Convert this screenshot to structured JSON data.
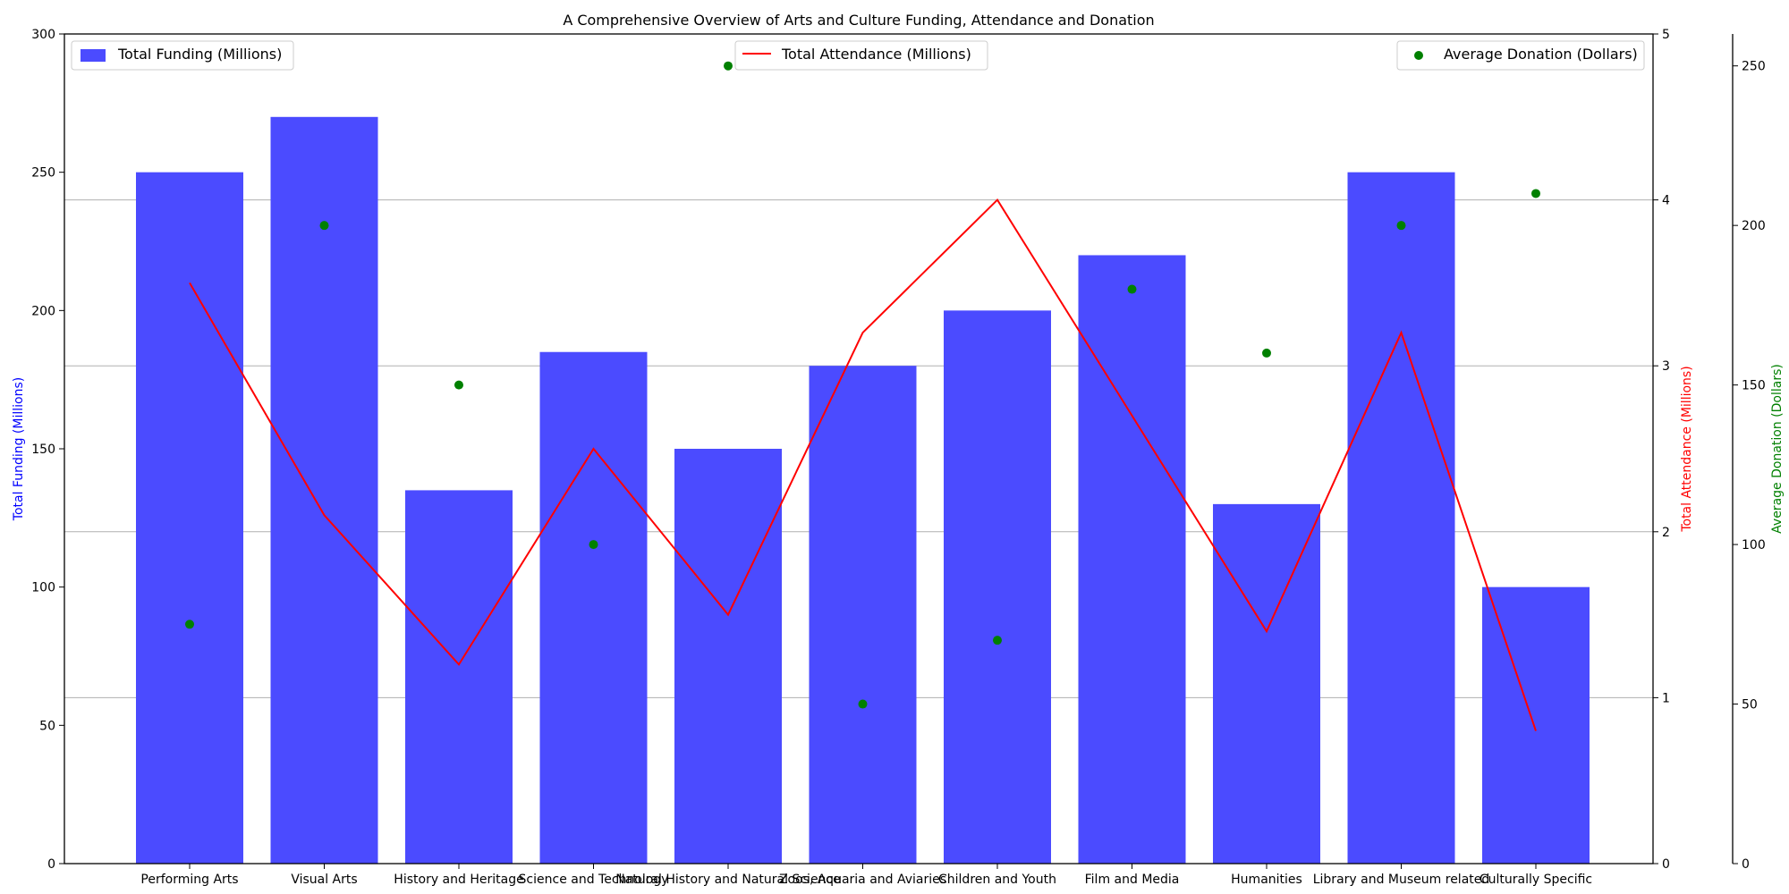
{
  "chart_data": {
    "type": "bar",
    "title": "A Comprehensive Overview of Arts and Culture Funding, Attendance and Donation",
    "categories": [
      "Performing Arts",
      "Visual Arts",
      "History and Heritage",
      "Science and Technology",
      "Natural History and Natural Science",
      "Zoos, Aquaria and Aviaries",
      "Children and Youth",
      "Film and Media",
      "Humanities",
      "Library and Museum related",
      "Culturally Specific"
    ],
    "series": [
      {
        "name": "Total Funding (Millions)",
        "type": "bar",
        "axis": "left",
        "color": "#4b4bff",
        "values": [
          250,
          270,
          135,
          185,
          150,
          180,
          200,
          220,
          130,
          250,
          100
        ]
      },
      {
        "name": "Total Attendance (Millions)",
        "type": "line",
        "axis": "right",
        "color": "#ff0000",
        "values": [
          3.5,
          2.1,
          1.2,
          2.5,
          1.5,
          3.2,
          4.0,
          2.7,
          1.4,
          3.2,
          0.8
        ]
      },
      {
        "name": "Average Donation (Dollars)",
        "type": "scatter",
        "axis": "right-outer",
        "color": "#008000",
        "values": [
          75,
          200,
          150,
          100,
          250,
          50,
          70,
          180,
          160,
          200,
          210
        ]
      }
    ],
    "axes": {
      "left": {
        "label": "Total Funding (Millions)",
        "ylim": [
          0,
          300
        ],
        "ticks": [
          "0",
          "50",
          "100",
          "150",
          "200",
          "250",
          "300"
        ],
        "color": "#0000ff"
      },
      "right": {
        "label": "Total Attendance (Millions)",
        "ylim": [
          0,
          5
        ],
        "ticks": [
          "0",
          "1",
          "2",
          "3",
          "4",
          "5"
        ],
        "color": "#ff0000"
      },
      "right_outer": {
        "label": "Average Donation (Dollars)",
        "ylim": [
          0,
          260
        ],
        "ticks": [
          "0",
          "50",
          "100",
          "150",
          "200",
          "250"
        ],
        "color": "#008000"
      }
    },
    "grid": "horizontal, aligned to attendance axis",
    "legend": [
      {
        "label": "Total Funding (Millions)",
        "placement": "top-left"
      },
      {
        "label": "Total Attendance (Millions)",
        "placement": "top-center"
      },
      {
        "label": "Average Donation (Dollars)",
        "placement": "top-right"
      }
    ]
  }
}
